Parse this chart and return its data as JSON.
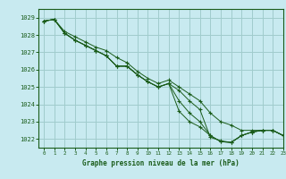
{
  "title": "Graphe pression niveau de la mer (hPa)",
  "background_color": "#c8eaf0",
  "grid_color": "#a0cccc",
  "line_color": "#1a5c1a",
  "marker_color": "#1a5c1a",
  "xlim": [
    -0.5,
    23
  ],
  "ylim": [
    1021.5,
    1029.5
  ],
  "xticks": [
    0,
    1,
    2,
    3,
    4,
    5,
    6,
    7,
    8,
    9,
    10,
    11,
    12,
    13,
    14,
    15,
    16,
    17,
    18,
    19,
    20,
    21,
    22,
    23
  ],
  "yticks": [
    1022,
    1023,
    1024,
    1025,
    1026,
    1027,
    1028,
    1029
  ],
  "series": [
    [
      1028.8,
      1028.9,
      1028.1,
      1027.7,
      1027.4,
      1027.1,
      1026.8,
      1026.2,
      1026.2,
      1025.7,
      1025.3,
      1025.0,
      1025.2,
      1024.8,
      1024.2,
      1023.7,
      1022.1,
      1021.9,
      1021.8,
      1022.2,
      1022.4,
      1022.5,
      1022.5,
      1022.2
    ],
    [
      1028.8,
      1028.9,
      1028.1,
      1027.7,
      1027.4,
      1027.1,
      1026.8,
      1026.2,
      1026.2,
      1025.7,
      1025.3,
      1025.0,
      1025.2,
      1024.2,
      1023.5,
      1023.0,
      1022.2,
      1021.85,
      1021.8,
      1022.2,
      1022.4,
      1022.5,
      1022.5,
      1022.2
    ],
    [
      1028.8,
      1028.9,
      1028.1,
      1027.7,
      1027.4,
      1027.1,
      1026.8,
      1026.2,
      1026.2,
      1025.7,
      1025.3,
      1025.0,
      1025.2,
      1023.6,
      1023.0,
      1022.7,
      1022.2,
      1021.85,
      1021.8,
      1022.2,
      1022.4,
      1022.5,
      1022.5,
      1022.2
    ],
    [
      1028.8,
      1028.9,
      1028.2,
      1027.9,
      1027.6,
      1027.3,
      1027.1,
      1026.7,
      1026.4,
      1025.9,
      1025.5,
      1025.2,
      1025.4,
      1025.0,
      1024.6,
      1024.2,
      1023.5,
      1023.0,
      1022.8,
      1022.5,
      1022.5,
      1022.5,
      1022.5,
      1022.2
    ]
  ]
}
